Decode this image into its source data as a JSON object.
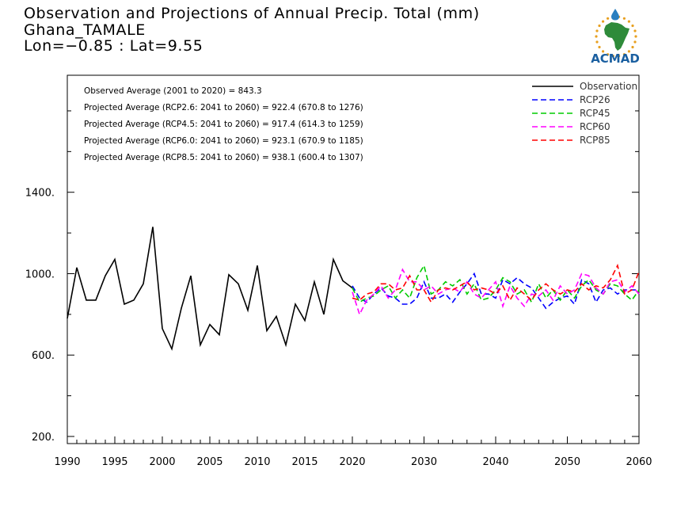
{
  "header": {
    "title": "Observation and Projections of Annual Precip. Total (mm)",
    "station": "Ghana_TAMALE",
    "coords": "Lon=−0.85 : Lat=9.55"
  },
  "logo": {
    "text": "ACMAD",
    "icon": "acmad-africa-logo",
    "colors": {
      "africa": "#2e8b3a",
      "ring": "#e8a020",
      "text": "#1a5fa0",
      "drop": "#2a7fc0"
    }
  },
  "stats": [
    "Observed Average (2001 to 2020) = 843.3",
    "Projected Average (RCP2.6: 2041 to 2060) = 922.4 (670.8 to 1276)",
    "Projected Average (RCP4.5: 2041 to 2060) = 917.4 (614.3 to 1259)",
    "Projected Average (RCP6.0: 2041 to 2060) = 923.1 (670.9 to 1185)",
    "Projected Average (RCP8.5: 2041 to 2060) = 938.1 (600.4 to 1307)"
  ],
  "chart_data": {
    "type": "line",
    "title": "Observation and Projections of Annual Precip. Total (mm)",
    "xlabel": "",
    "ylabel": "",
    "xlim": [
      1990,
      2060
    ],
    "ylim": [
      165,
      1975
    ],
    "x_ticks": [
      1990,
      1995,
      2000,
      2005,
      2010,
      2015,
      2020,
      2030,
      2040,
      2050,
      2060
    ],
    "y_ticks": [
      200,
      600,
      1000,
      1400
    ],
    "y_tick_labels": [
      "200.",
      "600.",
      "1000.",
      "1400."
    ],
    "legend_position": "top-right",
    "series": [
      {
        "name": "Observation",
        "color": "#000000",
        "dash": "solid",
        "x": [
          1990,
          1991,
          1992,
          1993,
          1994,
          1995,
          1996,
          1997,
          1998,
          1999,
          2000,
          2001,
          2002,
          2003,
          2004,
          2005,
          2006,
          2007,
          2008,
          2009,
          2010,
          2011,
          2012,
          2013,
          2014,
          2015,
          2016,
          2017,
          2018,
          2019,
          2020
        ],
        "values": [
          780,
          1030,
          870,
          870,
          990,
          1070,
          850,
          870,
          950,
          1230,
          730,
          630,
          830,
          990,
          650,
          750,
          700,
          995,
          950,
          820,
          1040,
          720,
          790,
          650,
          850,
          770,
          960,
          800,
          1070,
          965,
          930
        ]
      },
      {
        "name": "RCP26",
        "color": "#0000ff",
        "dash": "dashed",
        "x": [
          2020,
          2021,
          2022,
          2023,
          2024,
          2025,
          2026,
          2027,
          2028,
          2029,
          2030,
          2031,
          2032,
          2033,
          2034,
          2035,
          2036,
          2037,
          2038,
          2039,
          2040,
          2041,
          2042,
          2043,
          2044,
          2045,
          2046,
          2047,
          2048,
          2049,
          2050,
          2051,
          2052,
          2053,
          2054,
          2055,
          2056,
          2057,
          2058,
          2059,
          2060
        ],
        "values": [
          940,
          880,
          860,
          900,
          930,
          890,
          880,
          850,
          850,
          880,
          960,
          880,
          880,
          900,
          860,
          910,
          950,
          1000,
          900,
          900,
          880,
          970,
          950,
          980,
          950,
          930,
          880,
          830,
          860,
          880,
          890,
          850,
          970,
          950,
          860,
          920,
          930,
          900,
          920,
          920,
          920
        ]
      },
      {
        "name": "RCP45",
        "color": "#00cc00",
        "dash": "dashed",
        "x": [
          2020,
          2021,
          2022,
          2023,
          2024,
          2025,
          2026,
          2027,
          2028,
          2029,
          2030,
          2031,
          2032,
          2033,
          2034,
          2035,
          2036,
          2037,
          2038,
          2039,
          2040,
          2041,
          2042,
          2043,
          2044,
          2045,
          2046,
          2047,
          2048,
          2049,
          2050,
          2051,
          2052,
          2053,
          2054,
          2055,
          2056,
          2057,
          2058,
          2059,
          2060
        ],
        "values": [
          930,
          860,
          880,
          890,
          920,
          940,
          880,
          920,
          880,
          980,
          1040,
          900,
          920,
          960,
          940,
          970,
          900,
          950,
          870,
          880,
          920,
          980,
          960,
          900,
          920,
          860,
          950,
          880,
          920,
          870,
          920,
          880,
          940,
          970,
          920,
          900,
          950,
          940,
          900,
          870,
          920
        ]
      },
      {
        "name": "RCP60",
        "color": "#ff00ff",
        "dash": "dashed",
        "x": [
          2020,
          2021,
          2022,
          2023,
          2024,
          2025,
          2026,
          2027,
          2028,
          2029,
          2030,
          2031,
          2032,
          2033,
          2034,
          2035,
          2036,
          2037,
          2038,
          2039,
          2040,
          2041,
          2042,
          2043,
          2044,
          2045,
          2046,
          2047,
          2048,
          2049,
          2050,
          2051,
          2052,
          2053,
          2054,
          2055,
          2056,
          2057,
          2058,
          2059,
          2060
        ],
        "values": [
          910,
          800,
          870,
          900,
          940,
          880,
          920,
          1020,
          960,
          960,
          920,
          940,
          900,
          920,
          930,
          910,
          960,
          900,
          880,
          920,
          960,
          840,
          940,
          880,
          840,
          900,
          890,
          920,
          870,
          940,
          900,
          920,
          1000,
          990,
          930,
          900,
          960,
          970,
          910,
          940,
          900
        ]
      },
      {
        "name": "RCP85",
        "color": "#ff0000",
        "dash": "dashed",
        "x": [
          2020,
          2021,
          2022,
          2023,
          2024,
          2025,
          2026,
          2027,
          2028,
          2029,
          2030,
          2031,
          2032,
          2033,
          2034,
          2035,
          2036,
          2037,
          2038,
          2039,
          2040,
          2041,
          2042,
          2043,
          2044,
          2045,
          2046,
          2047,
          2048,
          2049,
          2050,
          2051,
          2052,
          2053,
          2054,
          2055,
          2056,
          2057,
          2058,
          2059,
          2060
        ],
        "values": [
          880,
          870,
          900,
          910,
          950,
          950,
          920,
          930,
          990,
          920,
          920,
          860,
          920,
          930,
          920,
          940,
          960,
          920,
          930,
          920,
          900,
          940,
          870,
          930,
          900,
          870,
          920,
          950,
          920,
          900,
          920,
          910,
          950,
          920,
          940,
          930,
          970,
          1040,
          900,
          920,
          1010
        ]
      }
    ]
  }
}
